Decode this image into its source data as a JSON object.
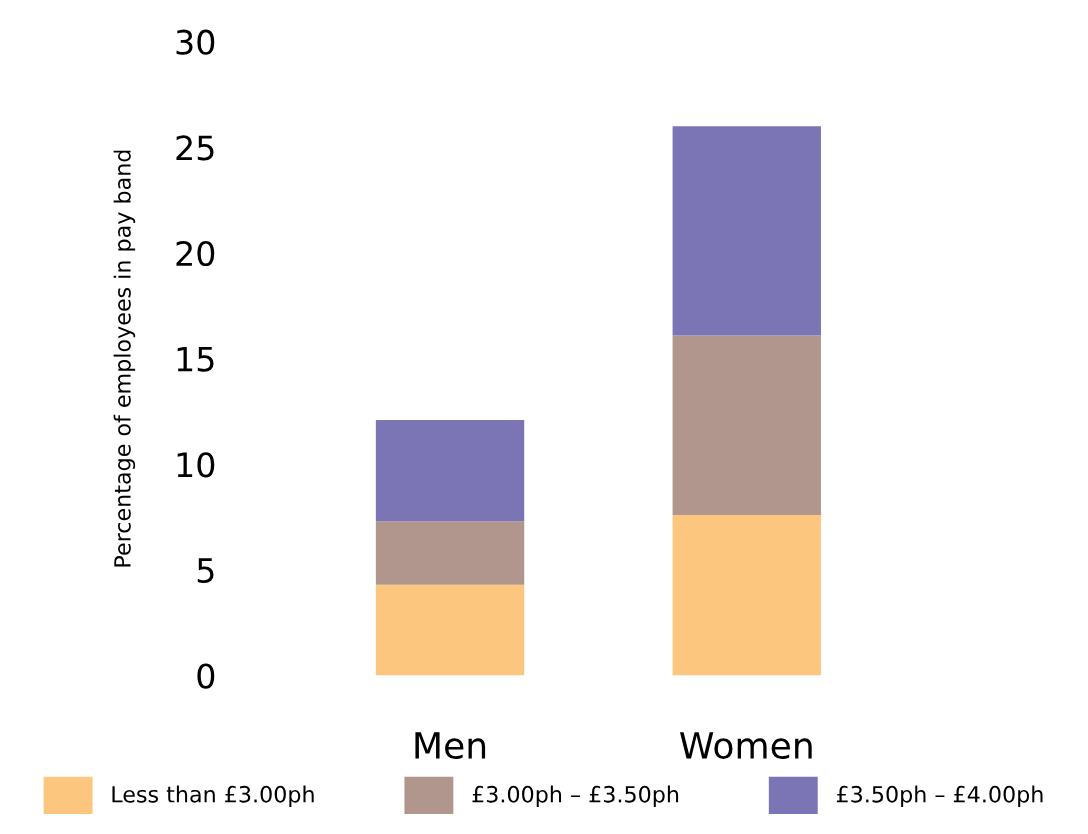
{
  "chart_data": {
    "type": "bar",
    "stacked": true,
    "ylabel": "Percentage of employees in pay band",
    "categories": [
      "Men",
      "Women"
    ],
    "series": [
      {
        "name": "Less than £3.00ph",
        "color": "#fdc67f",
        "values": [
          4.3,
          7.6
        ]
      },
      {
        "name": "£3.00ph – £3.50ph",
        "color": "#b1968d",
        "values": [
          3.0,
          8.5
        ]
      },
      {
        "name": "£3.50ph – £4.00ph",
        "color": "#7b74b5",
        "values": [
          4.8,
          9.9
        ]
      }
    ],
    "ylim": [
      0,
      30
    ],
    "yticks": [
      0,
      5,
      10,
      15,
      20,
      25,
      30
    ],
    "grid": false,
    "legend": "bottom"
  }
}
